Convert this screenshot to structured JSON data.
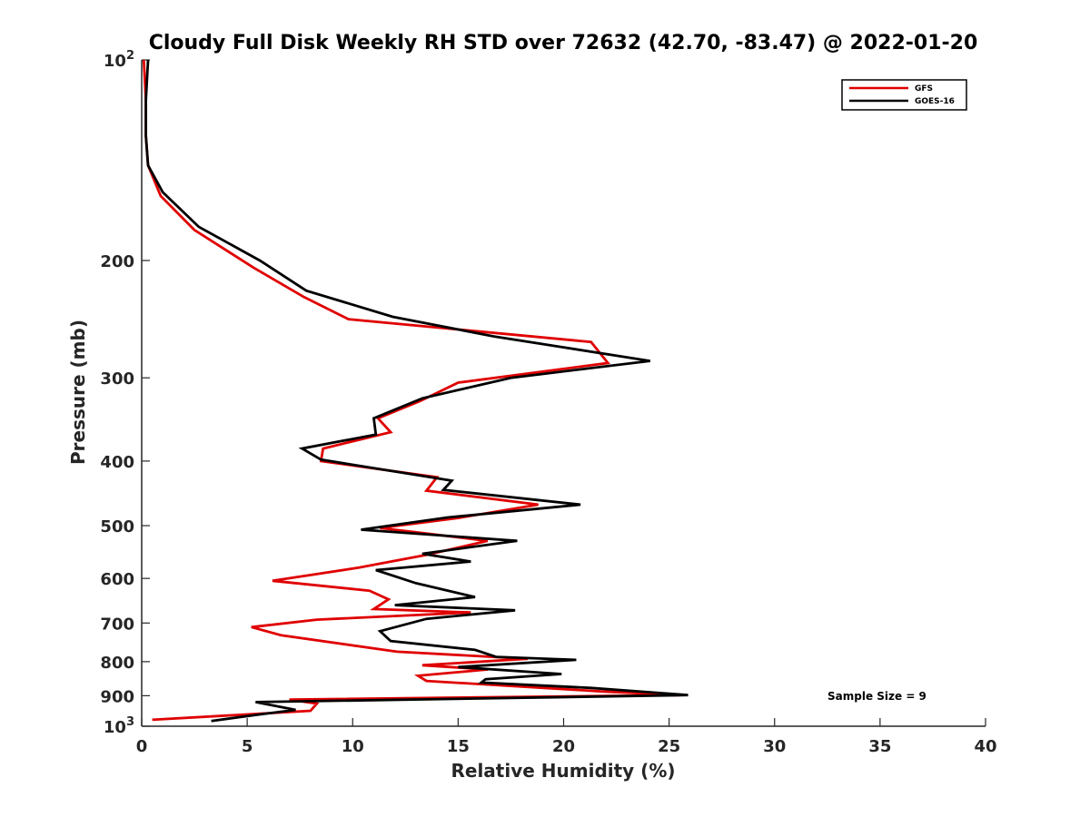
{
  "chart_data": {
    "type": "line",
    "title": "Cloudy Full Disk Weekly RH STD over 72632 (42.70, -83.47) @ 2022-01-20",
    "xlabel": "Relative Humidity (%)",
    "ylabel": "Pressure (mb)",
    "xlim": [
      0,
      40
    ],
    "ylim": [
      100,
      1000
    ],
    "y_scale": "log",
    "y_reversed": true,
    "xticks": [
      0,
      5,
      10,
      15,
      20,
      25,
      30,
      35,
      40
    ],
    "yticks": [
      {
        "value": 100,
        "label": "10",
        "sup": "2"
      },
      {
        "value": 200,
        "label": "200",
        "sup": ""
      },
      {
        "value": 300,
        "label": "300",
        "sup": ""
      },
      {
        "value": 400,
        "label": "400",
        "sup": ""
      },
      {
        "value": 500,
        "label": "500",
        "sup": ""
      },
      {
        "value": 600,
        "label": "600",
        "sup": ""
      },
      {
        "value": 700,
        "label": "700",
        "sup": ""
      },
      {
        "value": 800,
        "label": "800",
        "sup": ""
      },
      {
        "value": 900,
        "label": "900",
        "sup": ""
      },
      {
        "value": 1000,
        "label": "10",
        "sup": "3"
      }
    ],
    "legend_position": "top-right",
    "annotation": "Sample Size = 9",
    "series": [
      {
        "name": "GFS",
        "color": "#e00000",
        "points": [
          [
            0.1,
            100
          ],
          [
            0.2,
            115
          ],
          [
            0.2,
            130
          ],
          [
            0.3,
            144
          ],
          [
            0.9,
            160
          ],
          [
            2.5,
            180
          ],
          [
            5.3,
            205
          ],
          [
            7.7,
            227
          ],
          [
            9.8,
            245
          ],
          [
            21.3,
            265
          ],
          [
            22.1,
            285
          ],
          [
            15.0,
            305
          ],
          [
            13.2,
            325
          ],
          [
            11.2,
            345
          ],
          [
            11.8,
            362
          ],
          [
            8.6,
            383
          ],
          [
            8.5,
            400
          ],
          [
            14.0,
            423
          ],
          [
            13.5,
            443
          ],
          [
            18.8,
            465
          ],
          [
            15.0,
            487
          ],
          [
            11.3,
            504
          ],
          [
            16.4,
            527
          ],
          [
            13.5,
            553
          ],
          [
            10.3,
            578
          ],
          [
            6.2,
            605
          ],
          [
            10.8,
            626
          ],
          [
            11.7,
            645
          ],
          [
            11.0,
            667
          ],
          [
            15.6,
            675
          ],
          [
            8.3,
            692
          ],
          [
            5.2,
            710
          ],
          [
            6.6,
            730
          ],
          [
            12.1,
            773
          ],
          [
            18.3,
            792
          ],
          [
            13.3,
            810
          ],
          [
            16.4,
            822
          ],
          [
            13.1,
            840
          ],
          [
            13.5,
            855
          ],
          [
            21.9,
            887
          ],
          [
            25.5,
            898
          ],
          [
            7.0,
            912
          ],
          [
            8.3,
            925
          ],
          [
            8.0,
            948
          ],
          [
            0.5,
            978
          ]
        ]
      },
      {
        "name": "GOES-16",
        "color": "#000000",
        "points": [
          [
            0.3,
            100
          ],
          [
            0.2,
            115
          ],
          [
            0.2,
            130
          ],
          [
            0.3,
            144
          ],
          [
            1.0,
            158
          ],
          [
            2.7,
            178
          ],
          [
            5.6,
            200
          ],
          [
            7.8,
            222
          ],
          [
            11.9,
            243
          ],
          [
            16.7,
            260
          ],
          [
            24.1,
            283
          ],
          [
            17.5,
            300
          ],
          [
            13.3,
            322
          ],
          [
            11.0,
            345
          ],
          [
            11.1,
            365
          ],
          [
            7.6,
            383
          ],
          [
            8.5,
            398
          ],
          [
            14.7,
            428
          ],
          [
            14.3,
            442
          ],
          [
            20.8,
            465
          ],
          [
            14.5,
            486
          ],
          [
            10.4,
            507
          ],
          [
            17.8,
            527
          ],
          [
            13.3,
            551
          ],
          [
            15.6,
            566
          ],
          [
            11.1,
            583
          ],
          [
            13.0,
            610
          ],
          [
            15.8,
            640
          ],
          [
            12.0,
            658
          ],
          [
            17.7,
            670
          ],
          [
            13.5,
            690
          ],
          [
            11.3,
            720
          ],
          [
            11.8,
            745
          ],
          [
            15.8,
            768
          ],
          [
            16.8,
            787
          ],
          [
            20.6,
            795
          ],
          [
            15.0,
            815
          ],
          [
            19.9,
            835
          ],
          [
            16.3,
            850
          ],
          [
            16.1,
            860
          ],
          [
            21.3,
            876
          ],
          [
            25.9,
            898
          ],
          [
            5.4,
            920
          ],
          [
            7.3,
            945
          ],
          [
            5.6,
            960
          ],
          [
            3.3,
            982
          ]
        ]
      }
    ]
  }
}
